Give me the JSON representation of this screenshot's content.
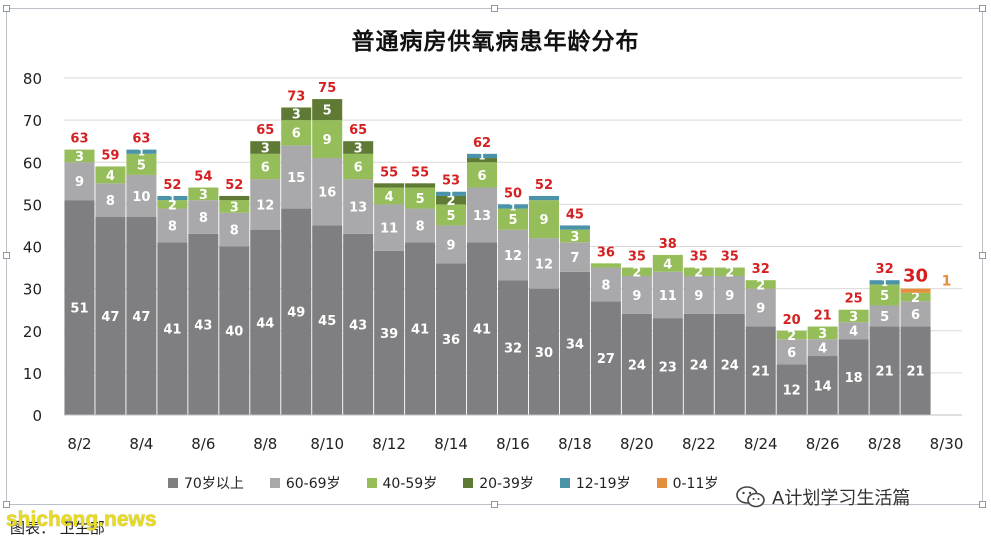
{
  "title": "普通病房供氧病患年龄分布",
  "colors": {
    "70plus": "#7f7e80",
    "60_69": "#a9a9ab",
    "40_59": "#95bd59",
    "20_39": "#5f7a34",
    "12_19": "#4a93a8",
    "0_11": "#e38f3d",
    "total_label": "#d42020",
    "segment_label": "#ffffff"
  },
  "legend": [
    {
      "key": "70plus",
      "label": "70岁以上"
    },
    {
      "key": "60_69",
      "label": "60-69岁"
    },
    {
      "key": "40_59",
      "label": "40-59岁"
    },
    {
      "key": "20_39",
      "label": "20-39岁"
    },
    {
      "key": "12_19",
      "label": "12-19岁"
    },
    {
      "key": "0_11",
      "label": "0-11岁"
    }
  ],
  "caption": "图表： 卫生部",
  "watermark": "shicheng.news",
  "wechat": {
    "icon": "wechat-icon",
    "label": "A计划学习生活篇"
  },
  "chart_data": {
    "type": "bar",
    "stacked": true,
    "title": "普通病房供氧病患年龄分布",
    "categories": [
      "8/2",
      "8/3",
      "8/4",
      "8/5",
      "8/6",
      "8/7",
      "8/8",
      "8/9",
      "8/10",
      "8/11",
      "8/12",
      "8/13",
      "8/14",
      "8/15",
      "8/16",
      "8/17",
      "8/18",
      "8/19",
      "8/20",
      "8/21",
      "8/22",
      "8/23",
      "8/24",
      "8/25",
      "8/26",
      "8/27",
      "8/28",
      "8/29",
      "8/30"
    ],
    "x_tick_labels": [
      "8/2",
      "8/4",
      "8/6",
      "8/8",
      "8/10",
      "8/12",
      "8/14",
      "8/16",
      "8/18",
      "8/20",
      "8/22",
      "8/24",
      "8/26",
      "8/28",
      "8/30"
    ],
    "ylim": [
      0,
      80
    ],
    "y_ticks": [
      0,
      10,
      20,
      30,
      40,
      50,
      60,
      70,
      80
    ],
    "grid": true,
    "legend_position": "bottom",
    "series": [
      {
        "key": "70plus",
        "name": "70岁以上",
        "values": [
          51,
          47,
          47,
          41,
          43,
          40,
          44,
          49,
          45,
          43,
          39,
          41,
          36,
          41,
          32,
          30,
          34,
          27,
          24,
          23,
          24,
          24,
          21,
          12,
          14,
          18,
          21,
          21,
          null
        ]
      },
      {
        "key": "60_69",
        "name": "60-69岁",
        "values": [
          9,
          8,
          10,
          8,
          8,
          8,
          12,
          15,
          16,
          13,
          11,
          8,
          9,
          13,
          12,
          12,
          7,
          8,
          9,
          11,
          9,
          9,
          9,
          6,
          4,
          4,
          5,
          6,
          null
        ]
      },
      {
        "key": "40_59",
        "name": "40-59岁",
        "values": [
          3,
          4,
          5,
          2,
          3,
          3,
          6,
          6,
          9,
          6,
          4,
          5,
          5,
          6,
          5,
          9,
          3,
          1,
          2,
          4,
          2,
          2,
          2,
          2,
          3,
          3,
          5,
          2,
          null
        ]
      },
      {
        "key": "20_39",
        "name": "20-39岁",
        "values": [
          0,
          0,
          0,
          0,
          0,
          1,
          3,
          3,
          5,
          3,
          1,
          1,
          2,
          1,
          0,
          0,
          0,
          0,
          0,
          0,
          0,
          0,
          0,
          0,
          0,
          0,
          0,
          0,
          null
        ]
      },
      {
        "key": "12_19",
        "name": "12-19岁",
        "values": [
          0,
          0,
          1,
          1,
          0,
          0,
          0,
          0,
          0,
          0,
          0,
          0,
          1,
          1,
          1,
          1,
          1,
          0,
          0,
          0,
          0,
          0,
          0,
          0,
          0,
          0,
          1,
          0,
          null
        ]
      },
      {
        "key": "0_11",
        "name": "0-11岁",
        "values": [
          0,
          0,
          0,
          0,
          0,
          0,
          0,
          0,
          0,
          0,
          0,
          0,
          0,
          0,
          0,
          0,
          0,
          0,
          0,
          0,
          0,
          0,
          0,
          0,
          0,
          0,
          0,
          1,
          null
        ]
      }
    ],
    "segment_labels": {
      "70plus": [
        51,
        47,
        47,
        41,
        43,
        40,
        44,
        49,
        45,
        43,
        39,
        41,
        36,
        41,
        32,
        30,
        34,
        27,
        24,
        23,
        24,
        24,
        21,
        12,
        14,
        18,
        21,
        21,
        null
      ],
      "60_69": [
        9,
        8,
        10,
        8,
        8,
        8,
        12,
        15,
        16,
        13,
        11,
        8,
        9,
        13,
        12,
        12,
        7,
        8,
        9,
        11,
        9,
        9,
        9,
        6,
        4,
        4,
        5,
        6,
        null
      ],
      "40_59": [
        3,
        4,
        5,
        2,
        3,
        3,
        6,
        6,
        9,
        6,
        4,
        5,
        5,
        6,
        5,
        9,
        3,
        null,
        2,
        4,
        2,
        2,
        2,
        2,
        3,
        3,
        5,
        2,
        null
      ],
      "20_39": [
        null,
        null,
        null,
        null,
        null,
        null,
        3,
        3,
        5,
        3,
        null,
        null,
        2,
        null,
        null,
        null,
        null,
        null,
        null,
        null,
        null,
        null,
        null,
        null,
        null,
        null,
        null,
        null,
        null
      ],
      "12_19": [
        null,
        null,
        1,
        1,
        null,
        null,
        null,
        null,
        null,
        null,
        null,
        null,
        1,
        1,
        1,
        null,
        null,
        null,
        null,
        null,
        null,
        null,
        null,
        null,
        null,
        null,
        1,
        null,
        null
      ]
    },
    "totals": [
      63,
      59,
      63,
      52,
      54,
      52,
      65,
      73,
      75,
      65,
      55,
      55,
      53,
      62,
      50,
      52,
      45,
      36,
      35,
      38,
      35,
      35,
      32,
      20,
      21,
      25,
      32,
      30,
      null
    ],
    "extra_annotation": {
      "category": "8/29",
      "text": "1",
      "color": "#e38f3d"
    }
  }
}
